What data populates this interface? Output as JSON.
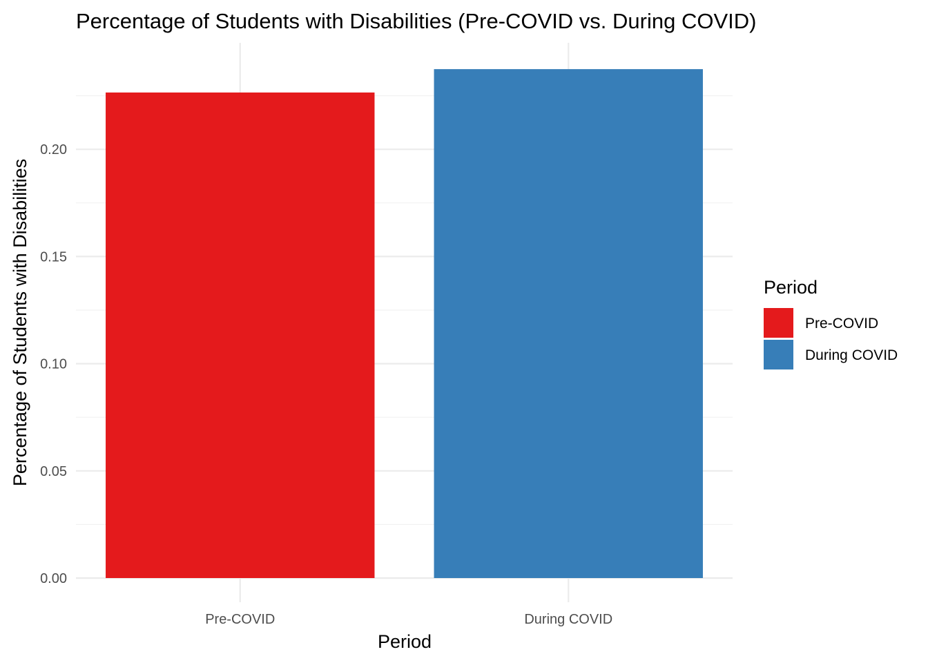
{
  "chart_data": {
    "type": "bar",
    "title": "Percentage of Students with Disabilities (Pre-COVID vs. During COVID)",
    "xlabel": "Period",
    "ylabel": "Percentage of Students with Disabilities",
    "categories": [
      "Pre-COVID",
      "During COVID"
    ],
    "values": [
      0.2265,
      0.2374
    ],
    "colors": [
      "#E41A1C",
      "#377EB8"
    ],
    "ylim": [
      0,
      0.245
    ],
    "yticks": [
      0.0,
      0.05,
      0.1,
      0.15,
      0.2
    ],
    "ytick_labels": [
      "0.00",
      "0.05",
      "0.10",
      "0.15",
      "0.20"
    ],
    "grid": true,
    "legend": {
      "title": "Period",
      "placement": "right",
      "entries": [
        "Pre-COVID",
        "During COVID"
      ]
    }
  }
}
